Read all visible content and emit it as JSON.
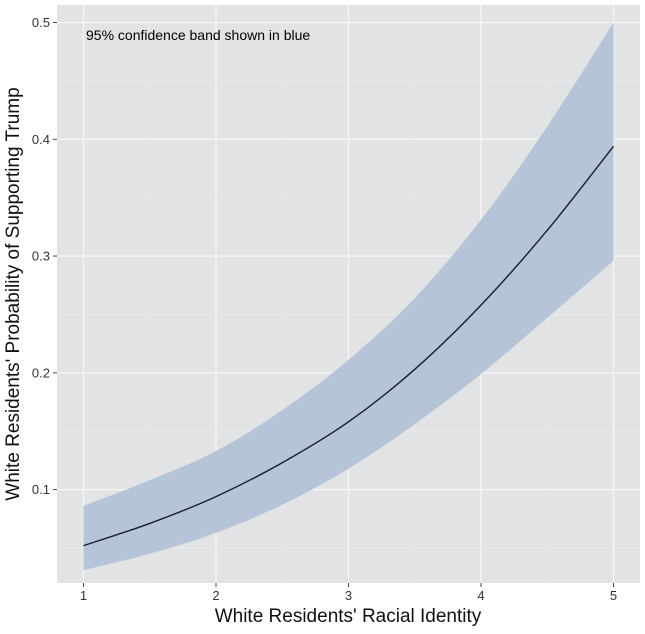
{
  "chart_data": {
    "type": "line",
    "annotation": "95% confidence band shown in blue",
    "xlabel": "White Residents' Racial Identity",
    "ylabel": "White Residents' Probability of Supporting Trump",
    "xlim": [
      0.8,
      5.2
    ],
    "ylim": [
      0.02,
      0.515
    ],
    "x_ticks": [
      1,
      2,
      3,
      4,
      5
    ],
    "y_ticks": [
      0.1,
      0.2,
      0.3,
      0.4,
      0.5
    ],
    "x_tick_labels": [
      "1",
      "2",
      "3",
      "4",
      "5"
    ],
    "y_tick_labels": [
      "0.1",
      "0.2",
      "0.3",
      "0.4",
      "0.5"
    ],
    "grid": true,
    "legend": "none",
    "series": [
      {
        "x": [
          1,
          1.5,
          2,
          2.5,
          3,
          3.5,
          4,
          4.5,
          5
        ],
        "y": [
          0.052,
          0.071,
          0.094,
          0.123,
          0.158,
          0.203,
          0.258,
          0.322,
          0.394
        ],
        "lower": [
          0.031,
          0.045,
          0.063,
          0.087,
          0.118,
          0.156,
          0.199,
          0.247,
          0.296
        ],
        "upper": [
          0.086,
          0.108,
          0.133,
          0.168,
          0.211,
          0.264,
          0.331,
          0.411,
          0.5
        ]
      }
    ],
    "colors": {
      "panel": "#e2e3e4",
      "grid_major": "#f5f5f5",
      "grid_minor": "#ebebeb",
      "band": "#b5c4d7",
      "line": "#1a1d2e",
      "text": "#333333",
      "axis_title": "#111111"
    }
  }
}
